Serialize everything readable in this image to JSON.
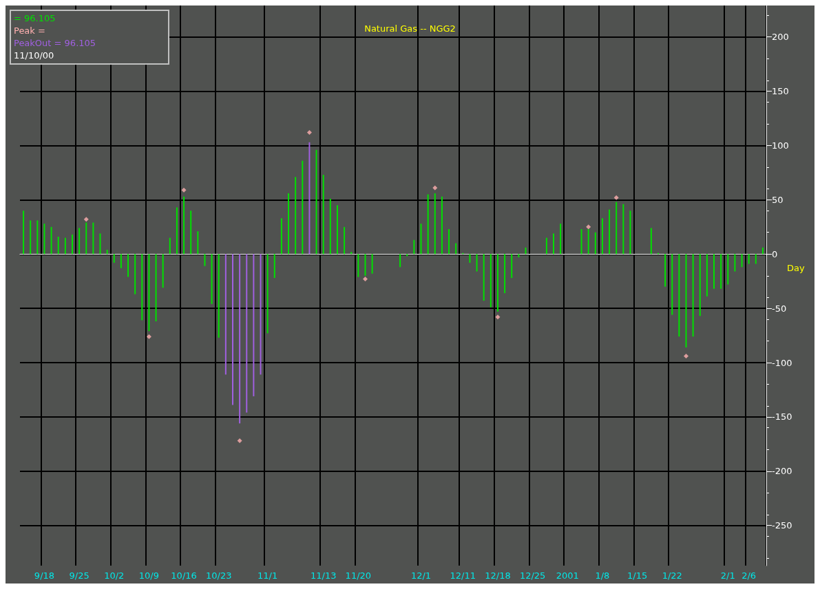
{
  "chart_data": {
    "type": "bar",
    "title": "Natural Gas -- NGG2",
    "xlabel": "Day",
    "annotations": [
      "= 96.105",
      "Peak =",
      "PeakOut = 96.105",
      "11/10/00"
    ],
    "categories": [
      null,
      null,
      null,
      "9/18",
      null,
      null,
      null,
      null,
      "9/25",
      null,
      null,
      null,
      null,
      "10/2",
      null,
      null,
      null,
      null,
      "10/9",
      null,
      null,
      null,
      null,
      "10/16",
      null,
      null,
      null,
      null,
      "10/23",
      null,
      null,
      null,
      null,
      null,
      null,
      "11/1",
      null,
      null,
      null,
      null,
      null,
      null,
      null,
      "11/13",
      null,
      null,
      null,
      null,
      "11/20",
      null,
      null,
      null,
      null,
      null,
      null,
      null,
      null,
      "12/1",
      null,
      null,
      null,
      null,
      null,
      "12/11",
      null,
      null,
      null,
      null,
      "12/18",
      null,
      null,
      null,
      null,
      "12/25",
      null,
      null,
      null,
      null,
      "2001",
      null,
      null,
      null,
      null,
      "1/8",
      null,
      null,
      null,
      null,
      "1/15",
      null,
      null,
      null,
      null,
      "1/22",
      null,
      null,
      null,
      null,
      null,
      null,
      null,
      "2/1",
      null,
      null,
      "2/6",
      null,
      null
    ],
    "series": [
      {
        "color": "#00e000",
        "colors": [
          "#00e000",
          "#00e000",
          "#00e000",
          "#00e000",
          "#00e000",
          "#00e000",
          "#00e000",
          "#00e000",
          "#00e000",
          "#00e000",
          "#00e000",
          "#00e000",
          "#00e000",
          "#00e000",
          "#00e000",
          "#00e000",
          "#00e000",
          "#00e000",
          "#00e000",
          "#00e000",
          "#00e000",
          "#00e000",
          "#00e000",
          "#00e000",
          "#00e000",
          "#00e000",
          "#00e000",
          "#00e000",
          "#00e000",
          "#a060e0",
          "#a060e0",
          "#a060e0",
          "#a060e0",
          "#a060e0",
          "#a060e0",
          "#00e000",
          "#00e000",
          "#00e000",
          "#00e000",
          "#00e000",
          "#00e000",
          "#a060e0",
          "#00e000",
          "#00e000",
          "#00e000",
          "#00e000",
          "#00e000",
          "#00e000",
          "#00e000",
          "#00e000",
          "#00e000",
          "#00e000",
          "#00e000",
          "#00e000",
          "#00e000",
          "#00e000",
          "#00e000",
          "#00e000",
          "#00e000",
          "#00e000",
          "#00e000",
          "#00e000",
          "#00e000",
          "#00e000",
          "#00e000",
          "#00e000",
          "#00e000",
          "#00e000",
          "#00e000",
          "#00e000",
          "#00e000",
          "#00e000",
          "#00e000",
          "#00e000",
          "#00e000",
          "#00e000",
          "#00e000",
          "#00e000",
          "#00e000",
          "#00e000",
          "#00e000",
          "#00e000",
          "#00e000",
          "#00e000",
          "#00e000",
          "#00e000",
          "#00e000",
          "#00e000",
          "#00e000",
          "#00e000",
          "#00e000",
          "#00e000",
          "#00e000",
          "#00e000",
          "#00e000",
          "#00e000",
          "#00e000",
          "#00e000",
          "#00e000",
          "#00e000",
          "#00e000",
          "#00e000",
          "#00e000",
          "#00e000",
          "#00e000",
          "#00e000",
          "#00e000"
        ],
        "values": [
          40,
          31,
          31,
          28,
          25,
          16,
          15,
          18,
          24,
          29,
          29,
          19,
          4,
          -8,
          -13,
          -21,
          -37,
          -61,
          -71,
          -62,
          -31,
          15,
          43,
          53,
          40,
          21,
          -11,
          -46,
          -77,
          -111,
          -139,
          -156,
          -146,
          -131,
          -111,
          -73,
          -22,
          33,
          56,
          71,
          86,
          103,
          96,
          73,
          51,
          45,
          25,
          2,
          -21,
          -20,
          -18,
          null,
          null,
          null,
          -12,
          -2,
          13,
          28,
          55,
          56,
          53,
          23,
          10,
          1,
          -8,
          -16,
          -43,
          -49,
          -53,
          -36,
          -22,
          -3,
          6,
          null,
          null,
          15,
          19,
          28,
          null,
          null,
          23,
          23,
          20,
          33,
          41,
          48,
          46,
          40,
          null,
          null,
          24,
          1,
          -30,
          -56,
          -76,
          -86,
          -76,
          -57,
          -39,
          -32,
          -32,
          -28,
          -16,
          -12,
          -9,
          -9,
          6
        ]
      },
      {
        "type": "scatter",
        "color": "#ffb0b0",
        "marker": "diamond",
        "values": [
          null,
          null,
          null,
          null,
          null,
          null,
          null,
          null,
          null,
          32,
          null,
          null,
          null,
          null,
          null,
          null,
          null,
          null,
          -76,
          null,
          null,
          null,
          null,
          59,
          null,
          null,
          null,
          null,
          null,
          null,
          null,
          -172,
          null,
          null,
          null,
          null,
          null,
          null,
          null,
          null,
          null,
          112,
          null,
          null,
          null,
          null,
          null,
          null,
          null,
          -23,
          null,
          null,
          null,
          null,
          null,
          null,
          null,
          null,
          null,
          61,
          null,
          null,
          null,
          null,
          null,
          null,
          null,
          null,
          -58,
          null,
          null,
          null,
          null,
          null,
          null,
          null,
          null,
          null,
          null,
          null,
          null,
          25,
          null,
          null,
          null,
          52,
          null,
          null,
          null,
          null,
          null,
          null,
          null,
          null,
          null,
          -94,
          null,
          null,
          null,
          null,
          null,
          null,
          null,
          null,
          null,
          null,
          null
        ]
      }
    ],
    "ylim": [
      -287,
      229
    ],
    "yticks": [
      -250,
      -200,
      -150,
      -100,
      -50,
      0,
      50,
      100,
      150,
      200
    ],
    "grid": true
  }
}
